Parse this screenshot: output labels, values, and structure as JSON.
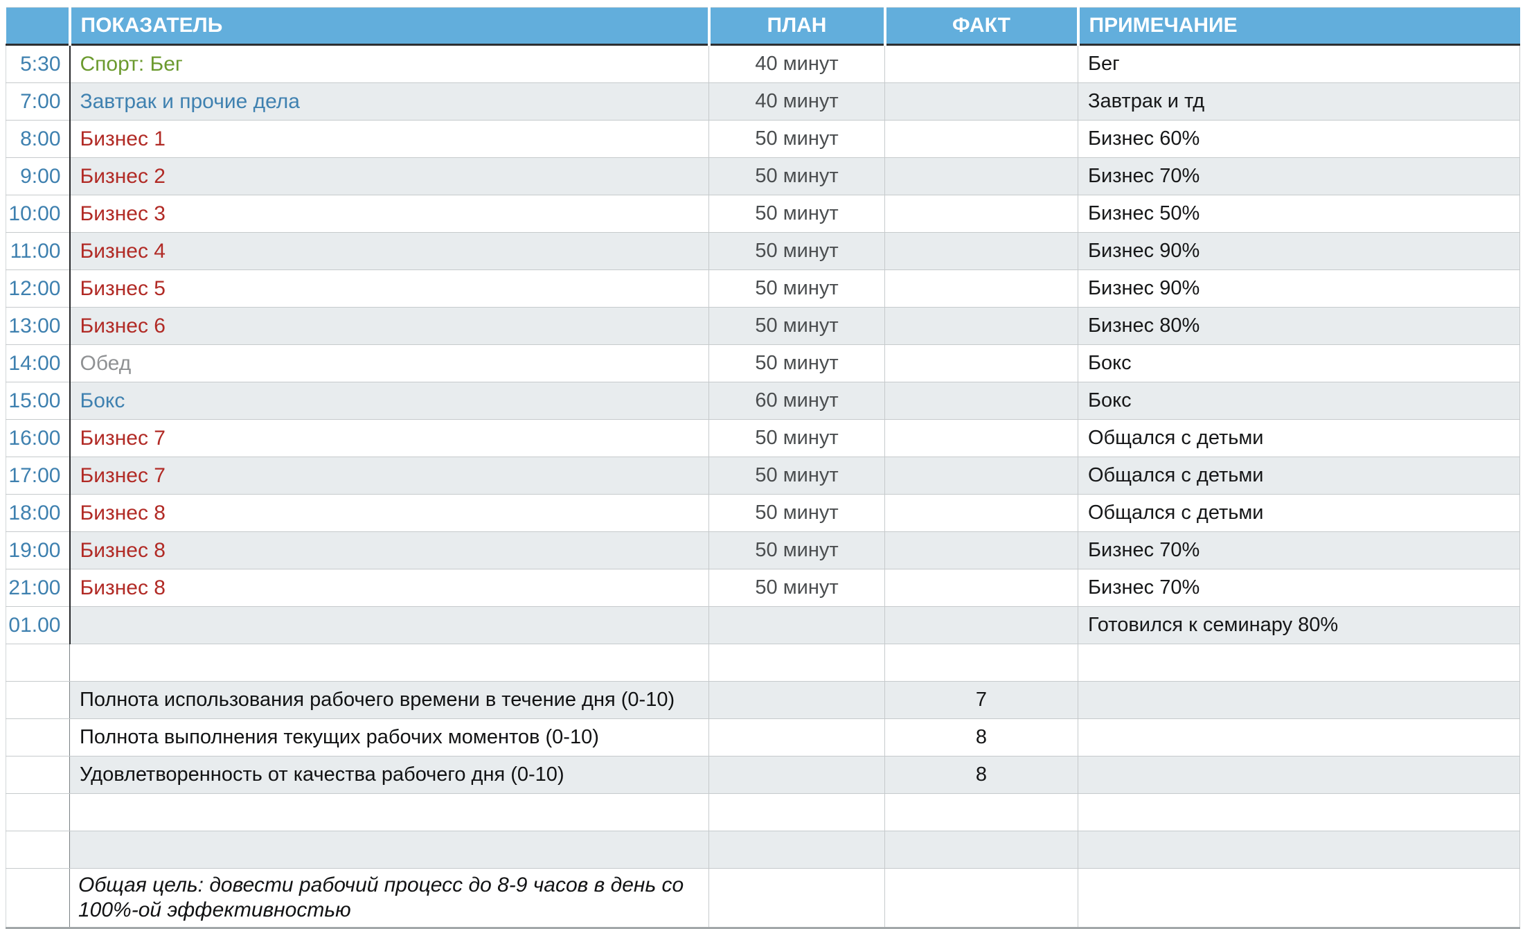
{
  "table": {
    "headers": {
      "time": "",
      "indicator": "ПОКАЗАТЕЛЬ",
      "plan": "ПЛАН",
      "fact": "ФАКТ",
      "note": "ПРИМЕЧАНИЕ"
    },
    "schedule_rows": [
      {
        "time": "5:30",
        "activity": "Спорт: Бег",
        "color": "green",
        "plan": "40 минут",
        "fact": "",
        "note": "Бег"
      },
      {
        "time": "7:00",
        "activity": "Завтрак и прочие дела",
        "color": "blue",
        "plan": "40 минут",
        "fact": "",
        "note": "Завтрак и тд"
      },
      {
        "time": "8:00",
        "activity": "Бизнес 1",
        "color": "red",
        "plan": "50 минут",
        "fact": "",
        "note": "Бизнес 60%"
      },
      {
        "time": "9:00",
        "activity": "Бизнес 2",
        "color": "red",
        "plan": "50 минут",
        "fact": "",
        "note": "Бизнес 70%"
      },
      {
        "time": "10:00",
        "activity": "Бизнес 3",
        "color": "red",
        "plan": "50 минут",
        "fact": "",
        "note": "Бизнес 50%"
      },
      {
        "time": "11:00",
        "activity": "Бизнес 4",
        "color": "red",
        "plan": "50 минут",
        "fact": "",
        "note": "Бизнес 90%"
      },
      {
        "time": "12:00",
        "activity": "Бизнес 5",
        "color": "red",
        "plan": "50 минут",
        "fact": "",
        "note": "Бизнес 90%"
      },
      {
        "time": "13:00",
        "activity": "Бизнес 6",
        "color": "red",
        "plan": "50 минут",
        "fact": "",
        "note": "Бизнес 80%"
      },
      {
        "time": "14:00",
        "activity": "Обед",
        "color": "gray",
        "plan": "50 минут",
        "fact": "",
        "note": "Бокс"
      },
      {
        "time": "15:00",
        "activity": "Бокс",
        "color": "blue",
        "plan": "60 минут",
        "fact": "",
        "note": "Бокс"
      },
      {
        "time": "16:00",
        "activity": "Бизнес 7",
        "color": "red",
        "plan": "50 минут",
        "fact": "",
        "note": "Общался с детьми"
      },
      {
        "time": "17:00",
        "activity": "Бизнес 7",
        "color": "red",
        "plan": "50 минут",
        "fact": "",
        "note": "Общался с детьми"
      },
      {
        "time": "18:00",
        "activity": "Бизнес 8",
        "color": "red",
        "plan": "50 минут",
        "fact": "",
        "note": "Общался с детьми"
      },
      {
        "time": "19:00",
        "activity": "Бизнес 8",
        "color": "red",
        "plan": "50 минут",
        "fact": "",
        "note": "Бизнес 70%"
      },
      {
        "time": "21:00",
        "activity": "Бизнес 8",
        "color": "red",
        "plan": "50 минут",
        "fact": "",
        "note": "Бизнес 70%"
      },
      {
        "time": "01.00",
        "activity": "",
        "color": "",
        "plan": "",
        "fact": "",
        "note": "Готовился к семинару 80%"
      }
    ],
    "score_rows": [
      {
        "label": "Полнота использования рабочего времени в течение дня (0-10)",
        "fact": "7"
      },
      {
        "label": "Полнота выполнения текущих рабочих моментов (0-10)",
        "fact": "8"
      },
      {
        "label": "Удовлетворенность от качества рабочего дня (0-10)",
        "fact": "8"
      }
    ],
    "goal": "Общая цель: довести рабочий процесс до 8-9 часов в день со 100%-ой эффективностью"
  },
  "colors": {
    "header_bg": "#62AEDC",
    "header_text": "#FFFFFF",
    "zebra_row_bg": "#E8ECEE",
    "time_text": "#3E80AF",
    "activity_green": "#6B9A2E",
    "activity_blue": "#3F81B0",
    "activity_red": "#B12A25",
    "activity_gray": "#8F9193"
  }
}
